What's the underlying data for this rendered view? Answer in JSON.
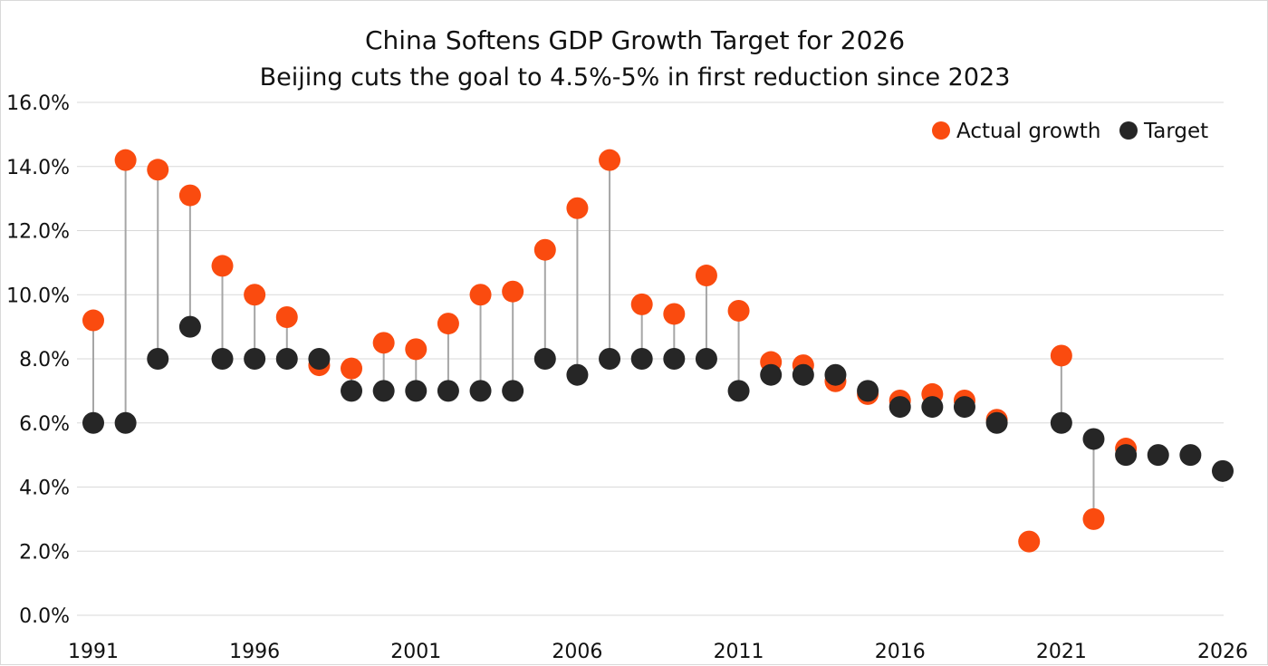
{
  "chart_data": {
    "type": "scatter",
    "title": "China Softens GDP Growth Target for 2026",
    "subtitle": "Beijing cuts the goal to 4.5%-5% in first reduction since 2023",
    "xlim": [
      1991,
      2026
    ],
    "ylim": [
      0,
      16
    ],
    "x_ticks": [
      1991,
      1996,
      2001,
      2006,
      2011,
      2016,
      2021,
      2026
    ],
    "y_ticks": [
      0,
      2,
      4,
      6,
      8,
      10,
      12,
      14,
      16
    ],
    "y_tick_labels": [
      "0.0%",
      "2.0%",
      "4.0%",
      "6.0%",
      "8.0%",
      "10.0%",
      "12.0%",
      "14.0%",
      "16.0%"
    ],
    "grid": true,
    "legend_position": "top-right",
    "series": [
      {
        "name": "Actual growth",
        "color": "#fa4b0f",
        "points": [
          [
            1991,
            9.2
          ],
          [
            1992,
            14.2
          ],
          [
            1993,
            13.9
          ],
          [
            1994,
            13.1
          ],
          [
            1995,
            10.9
          ],
          [
            1996,
            10.0
          ],
          [
            1997,
            9.3
          ],
          [
            1998,
            7.8
          ],
          [
            1999,
            7.7
          ],
          [
            2000,
            8.5
          ],
          [
            2001,
            8.3
          ],
          [
            2002,
            9.1
          ],
          [
            2003,
            10.0
          ],
          [
            2004,
            10.1
          ],
          [
            2005,
            11.4
          ],
          [
            2006,
            12.7
          ],
          [
            2007,
            14.2
          ],
          [
            2008,
            9.7
          ],
          [
            2009,
            9.4
          ],
          [
            2010,
            10.6
          ],
          [
            2011,
            9.5
          ],
          [
            2012,
            7.9
          ],
          [
            2013,
            7.8
          ],
          [
            2014,
            7.3
          ],
          [
            2015,
            6.9
          ],
          [
            2016,
            6.7
          ],
          [
            2017,
            6.9
          ],
          [
            2018,
            6.7
          ],
          [
            2019,
            6.1
          ],
          [
            2020,
            2.3
          ],
          [
            2021,
            8.1
          ],
          [
            2022,
            3.0
          ],
          [
            2023,
            5.2
          ]
        ]
      },
      {
        "name": "Target",
        "color": "#262626",
        "points": [
          [
            1991,
            6.0
          ],
          [
            1992,
            6.0
          ],
          [
            1993,
            8.0
          ],
          [
            1994,
            9.0
          ],
          [
            1995,
            8.0
          ],
          [
            1996,
            8.0
          ],
          [
            1997,
            8.0
          ],
          [
            1998,
            8.0
          ],
          [
            1999,
            7.0
          ],
          [
            2000,
            7.0
          ],
          [
            2001,
            7.0
          ],
          [
            2002,
            7.0
          ],
          [
            2003,
            7.0
          ],
          [
            2004,
            7.0
          ],
          [
            2005,
            8.0
          ],
          [
            2006,
            7.5
          ],
          [
            2007,
            8.0
          ],
          [
            2008,
            8.0
          ],
          [
            2009,
            8.0
          ],
          [
            2010,
            8.0
          ],
          [
            2011,
            7.0
          ],
          [
            2012,
            7.5
          ],
          [
            2013,
            7.5
          ],
          [
            2014,
            7.5
          ],
          [
            2015,
            7.0
          ],
          [
            2016,
            6.5
          ],
          [
            2017,
            6.5
          ],
          [
            2018,
            6.5
          ],
          [
            2019,
            6.0
          ],
          [
            2021,
            6.0
          ],
          [
            2022,
            5.5
          ],
          [
            2023,
            5.0
          ],
          [
            2024,
            5.0
          ],
          [
            2025,
            5.0
          ],
          [
            2026,
            4.5
          ]
        ]
      }
    ]
  }
}
